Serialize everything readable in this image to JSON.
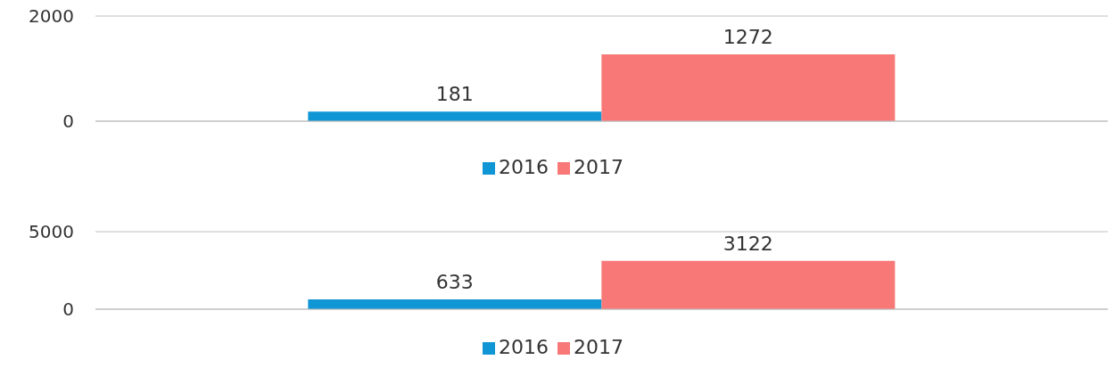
{
  "chart_data": [
    {
      "type": "bar",
      "categories": [
        null
      ],
      "series": [
        {
          "name": "2016",
          "color": "#1196d5",
          "values": [
            181
          ]
        },
        {
          "name": "2017",
          "color": "#f87878",
          "values": [
            1272
          ]
        }
      ],
      "ylim": [
        0,
        2000
      ],
      "yticks": [
        0,
        2000
      ],
      "grid": "y",
      "legend": "bottom",
      "data_labels": true
    },
    {
      "type": "bar",
      "categories": [
        null
      ],
      "series": [
        {
          "name": "2016",
          "color": "#1196d5",
          "values": [
            633
          ]
        },
        {
          "name": "2017",
          "color": "#f87878",
          "values": [
            3122
          ]
        }
      ],
      "ylim": [
        0,
        5000
      ],
      "yticks": [
        0,
        5000
      ],
      "grid": "y",
      "legend": "bottom",
      "data_labels": true
    }
  ]
}
